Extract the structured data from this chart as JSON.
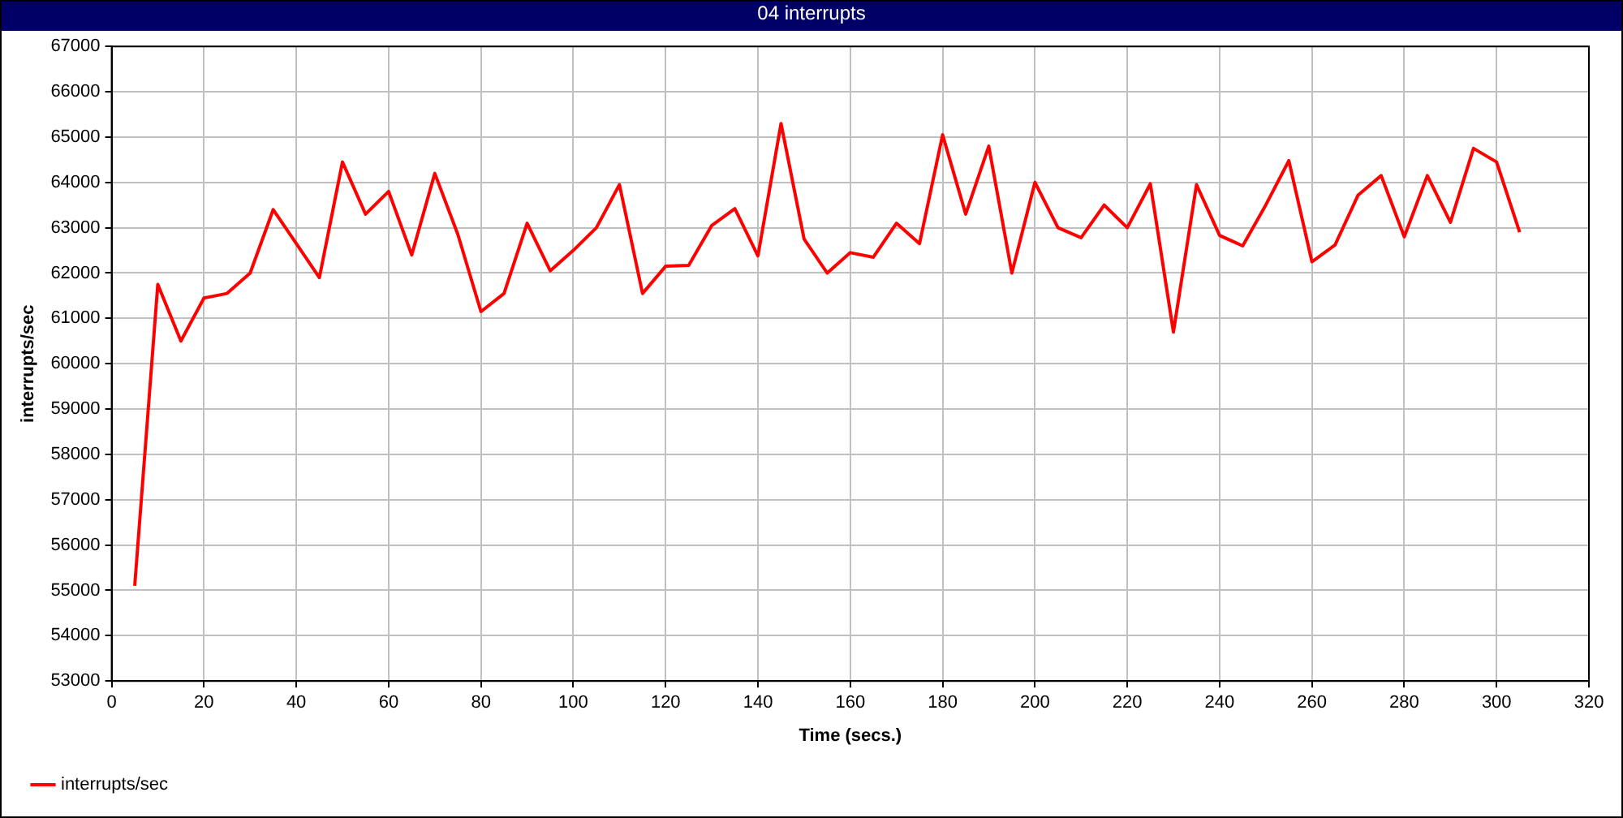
{
  "chart_data": {
    "type": "line",
    "title": "04 interrupts",
    "xlabel": "Time (secs.)",
    "ylabel": "interrupts/sec",
    "xlim": [
      0,
      320
    ],
    "xticks": [
      0,
      20,
      40,
      60,
      80,
      100,
      120,
      140,
      160,
      180,
      200,
      220,
      240,
      260,
      280,
      300,
      320
    ],
    "ylim": [
      53000,
      67000
    ],
    "yticks": [
      53000,
      54000,
      55000,
      56000,
      57000,
      58000,
      59000,
      60000,
      61000,
      62000,
      63000,
      64000,
      65000,
      66000,
      67000
    ],
    "grid": true,
    "legend": "bottom left",
    "marker": "none",
    "line_style": "solid",
    "x": [
      5,
      10,
      15,
      20,
      25,
      30,
      35,
      40,
      45,
      50,
      55,
      60,
      65,
      70,
      75,
      80,
      85,
      90,
      95,
      100,
      105,
      110,
      115,
      120,
      125,
      130,
      135,
      140,
      145,
      150,
      155,
      160,
      165,
      170,
      175,
      180,
      185,
      190,
      195,
      200,
      205,
      210,
      215,
      220,
      225,
      230,
      235,
      240,
      245,
      250,
      255,
      260,
      265,
      270,
      275,
      280,
      285,
      290,
      295,
      300,
      305
    ],
    "series": [
      {
        "name": "interrupts/sec",
        "color": "#ff0000",
        "values": [
          55100,
          61750,
          60500,
          61450,
          61550,
          62000,
          63400,
          62650,
          61900,
          64450,
          63300,
          63800,
          62400,
          64200,
          62850,
          61150,
          61550,
          63100,
          62050,
          62500,
          63000,
          63950,
          61550,
          62150,
          62170,
          63050,
          63420,
          62380,
          65300,
          62750,
          62000,
          62450,
          62350,
          63100,
          62650,
          65050,
          63300,
          64800,
          62000,
          64000,
          63000,
          62780,
          63500,
          63000,
          63970,
          60700,
          63950,
          62830,
          62600,
          63500,
          64480,
          62250,
          62620,
          63720,
          64150,
          62800,
          64150,
          63120,
          64750,
          64450,
          62900
        ]
      }
    ]
  }
}
